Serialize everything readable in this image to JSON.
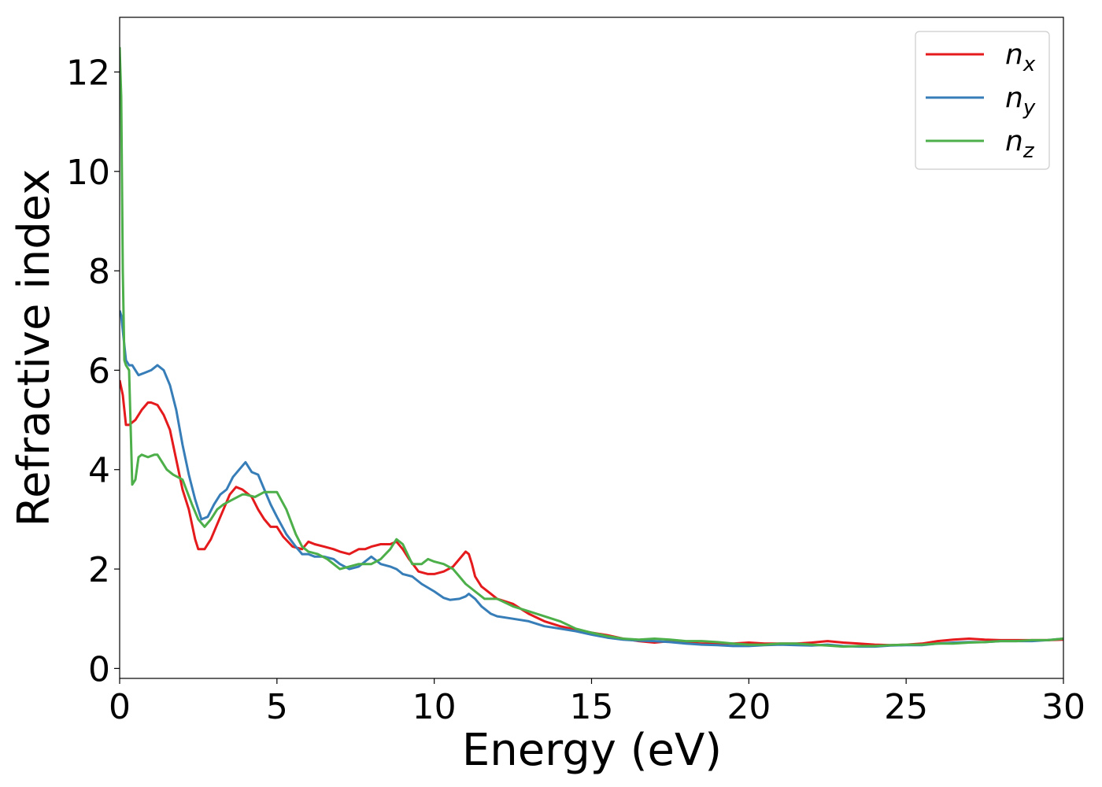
{
  "chart_data": {
    "type": "line",
    "title": "",
    "xlabel": "Energy (eV)",
    "ylabel": "Refractive index",
    "xlim": [
      0,
      30
    ],
    "ylim": [
      -0.2,
      13.1
    ],
    "xticks": [
      0,
      5,
      10,
      15,
      20,
      25,
      30
    ],
    "yticks": [
      0,
      2,
      4,
      6,
      8,
      10,
      12
    ],
    "grid": false,
    "legend_position": "top-right",
    "series": [
      {
        "name": "n",
        "subscript": "x",
        "color": "#e41a1c",
        "x": [
          0,
          0.1,
          0.2,
          0.3,
          0.5,
          0.7,
          0.9,
          1.0,
          1.2,
          1.4,
          1.6,
          1.8,
          2.0,
          2.2,
          2.4,
          2.5,
          2.7,
          2.9,
          3.1,
          3.3,
          3.5,
          3.7,
          3.9,
          4.0,
          4.2,
          4.4,
          4.6,
          4.8,
          5.0,
          5.2,
          5.5,
          5.8,
          6.0,
          6.2,
          6.5,
          6.8,
          7.0,
          7.3,
          7.6,
          7.8,
          8.0,
          8.3,
          8.6,
          8.8,
          9.0,
          9.2,
          9.5,
          9.8,
          10.0,
          10.3,
          10.6,
          10.8,
          11.0,
          11.1,
          11.2,
          11.3,
          11.5,
          11.8,
          12.0,
          12.5,
          13.0,
          13.5,
          14.0,
          14.5,
          15.0,
          15.5,
          16.0,
          16.5,
          17.0,
          17.5,
          18.0,
          18.5,
          19.0,
          19.5,
          20.0,
          20.5,
          21.0,
          21.5,
          22.0,
          22.5,
          23.0,
          23.5,
          24.0,
          24.5,
          25.0,
          25.5,
          26.0,
          26.5,
          27.0,
          27.5,
          28.0,
          28.5,
          29.0,
          29.5,
          30.0
        ],
        "y": [
          5.8,
          5.5,
          4.9,
          4.9,
          5.0,
          5.2,
          5.35,
          5.35,
          5.3,
          5.1,
          4.8,
          4.2,
          3.6,
          3.2,
          2.6,
          2.4,
          2.4,
          2.6,
          2.9,
          3.2,
          3.5,
          3.65,
          3.6,
          3.55,
          3.45,
          3.2,
          3.0,
          2.85,
          2.85,
          2.65,
          2.45,
          2.4,
          2.55,
          2.5,
          2.45,
          2.4,
          2.35,
          2.3,
          2.4,
          2.4,
          2.45,
          2.5,
          2.5,
          2.55,
          2.4,
          2.2,
          1.95,
          1.9,
          1.9,
          1.95,
          2.05,
          2.2,
          2.35,
          2.3,
          2.1,
          1.85,
          1.65,
          1.5,
          1.4,
          1.3,
          1.1,
          0.95,
          0.85,
          0.78,
          0.72,
          0.67,
          0.6,
          0.55,
          0.52,
          0.55,
          0.52,
          0.5,
          0.5,
          0.5,
          0.52,
          0.5,
          0.5,
          0.5,
          0.52,
          0.55,
          0.52,
          0.5,
          0.48,
          0.47,
          0.48,
          0.5,
          0.55,
          0.58,
          0.6,
          0.58,
          0.57,
          0.57,
          0.57,
          0.57,
          0.58
        ]
      },
      {
        "name": "n",
        "subscript": "y",
        "color": "#377eb8",
        "x": [
          0,
          0.05,
          0.1,
          0.2,
          0.3,
          0.4,
          0.5,
          0.6,
          0.8,
          1.0,
          1.2,
          1.4,
          1.6,
          1.8,
          2.0,
          2.2,
          2.4,
          2.6,
          2.8,
          3.0,
          3.2,
          3.4,
          3.6,
          3.8,
          4.0,
          4.2,
          4.4,
          4.6,
          4.8,
          5.0,
          5.3,
          5.6,
          5.8,
          6.0,
          6.2,
          6.5,
          6.8,
          7.0,
          7.3,
          7.6,
          7.8,
          8.0,
          8.3,
          8.6,
          8.8,
          9.0,
          9.3,
          9.6,
          10.0,
          10.3,
          10.5,
          10.8,
          11.0,
          11.1,
          11.3,
          11.5,
          11.8,
          12.0,
          12.5,
          13.0,
          13.5,
          14.0,
          14.5,
          15.0,
          15.5,
          16.0,
          16.5,
          17.0,
          17.5,
          18.0,
          18.5,
          19.0,
          19.5,
          20.0,
          20.5,
          21.0,
          21.5,
          22.0,
          22.5,
          23.0,
          23.5,
          24.0,
          24.5,
          25.0,
          25.5,
          26.0,
          26.5,
          27.0,
          27.5,
          28.0,
          28.5,
          29.0,
          29.5,
          30.0
        ],
        "y": [
          7.2,
          7.1,
          6.8,
          6.2,
          6.1,
          6.1,
          6.0,
          5.9,
          5.95,
          6.0,
          6.1,
          6.0,
          5.7,
          5.2,
          4.5,
          3.9,
          3.4,
          3.0,
          3.05,
          3.3,
          3.5,
          3.6,
          3.85,
          4.0,
          4.15,
          3.95,
          3.9,
          3.6,
          3.3,
          3.05,
          2.7,
          2.45,
          2.3,
          2.3,
          2.25,
          2.25,
          2.2,
          2.1,
          2.0,
          2.05,
          2.15,
          2.25,
          2.1,
          2.05,
          2.0,
          1.9,
          1.85,
          1.7,
          1.55,
          1.42,
          1.38,
          1.4,
          1.45,
          1.5,
          1.4,
          1.25,
          1.1,
          1.05,
          1.0,
          0.95,
          0.85,
          0.8,
          0.75,
          0.68,
          0.62,
          0.58,
          0.56,
          0.55,
          0.53,
          0.5,
          0.48,
          0.47,
          0.45,
          0.45,
          0.47,
          0.48,
          0.47,
          0.46,
          0.48,
          0.45,
          0.44,
          0.44,
          0.46,
          0.47,
          0.47,
          0.5,
          0.52,
          0.53,
          0.53,
          0.55,
          0.55,
          0.55,
          0.57,
          0.6
        ]
      },
      {
        "name": "n",
        "subscript": "z",
        "color": "#4daf4a",
        "x": [
          0,
          0.05,
          0.1,
          0.15,
          0.2,
          0.3,
          0.4,
          0.5,
          0.6,
          0.7,
          0.9,
          1.1,
          1.2,
          1.3,
          1.5,
          1.7,
          2.0,
          2.3,
          2.5,
          2.7,
          2.9,
          3.1,
          3.3,
          3.6,
          3.9,
          4.0,
          4.3,
          4.6,
          5.0,
          5.3,
          5.6,
          5.8,
          6.0,
          6.3,
          6.6,
          7.0,
          7.3,
          7.6,
          8.0,
          8.3,
          8.6,
          8.8,
          9.0,
          9.3,
          9.6,
          9.8,
          10.0,
          10.3,
          10.6,
          10.8,
          11.0,
          11.3,
          11.6,
          12.0,
          12.5,
          13.0,
          13.5,
          14.0,
          14.5,
          15.0,
          15.5,
          16.0,
          16.5,
          17.0,
          17.5,
          18.0,
          18.5,
          19.0,
          19.5,
          20.0,
          20.5,
          21.0,
          21.5,
          22.0,
          22.5,
          23.0,
          23.5,
          24.0,
          24.5,
          25.0,
          25.5,
          26.0,
          26.5,
          27.0,
          27.5,
          28.0,
          28.5,
          29.0,
          29.5,
          30.0
        ],
        "y": [
          12.5,
          11.5,
          8.0,
          6.2,
          6.1,
          6.0,
          3.7,
          3.8,
          4.25,
          4.3,
          4.25,
          4.3,
          4.3,
          4.2,
          4.0,
          3.9,
          3.8,
          3.3,
          3.0,
          2.85,
          3.0,
          3.2,
          3.3,
          3.4,
          3.5,
          3.5,
          3.45,
          3.55,
          3.55,
          3.2,
          2.7,
          2.45,
          2.35,
          2.3,
          2.2,
          2.0,
          2.05,
          2.1,
          2.1,
          2.2,
          2.4,
          2.6,
          2.5,
          2.1,
          2.1,
          2.2,
          2.15,
          2.1,
          2.0,
          1.85,
          1.7,
          1.55,
          1.4,
          1.4,
          1.25,
          1.15,
          1.05,
          0.95,
          0.8,
          0.72,
          0.65,
          0.6,
          0.58,
          0.6,
          0.58,
          0.55,
          0.55,
          0.53,
          0.5,
          0.48,
          0.48,
          0.5,
          0.5,
          0.48,
          0.46,
          0.44,
          0.45,
          0.45,
          0.47,
          0.48,
          0.48,
          0.5,
          0.5,
          0.52,
          0.53,
          0.55,
          0.55,
          0.57,
          0.57,
          0.6
        ]
      }
    ]
  }
}
